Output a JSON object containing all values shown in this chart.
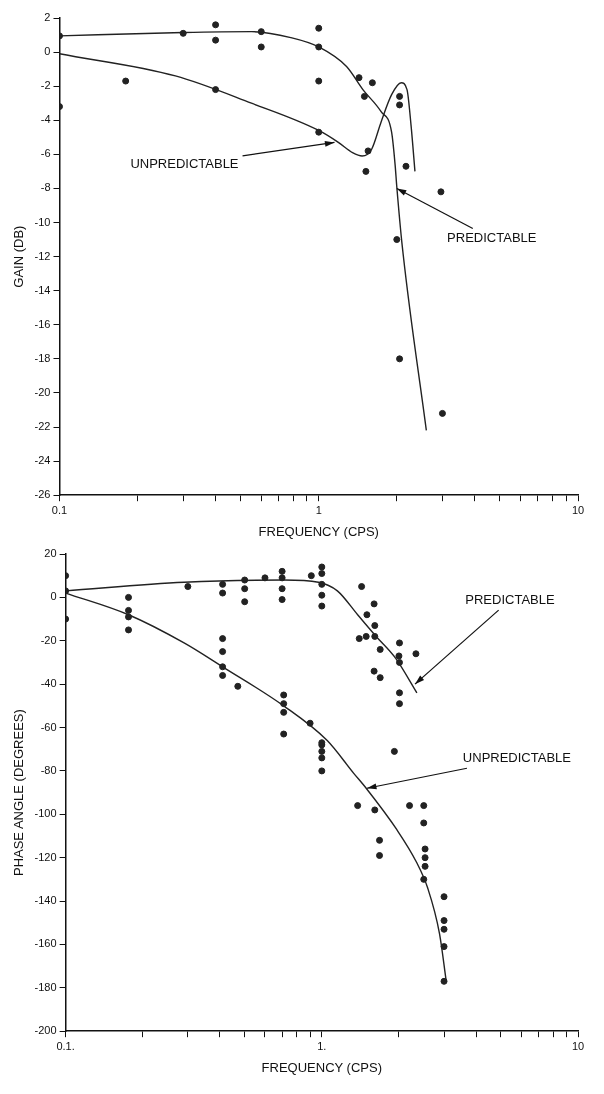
{
  "chart_data": [
    {
      "type": "scatter",
      "xlabel": "FREQUENCY (CPS)",
      "ylabel": "GAIN (DB)",
      "log": "x",
      "xlim": [
        0.1,
        10
      ],
      "xticks": [
        0.1,
        {
          "value": 0.2,
          "label": null
        },
        {
          "value": 0.3,
          "label": null
        },
        {
          "value": 0.4,
          "label": null
        },
        {
          "value": 0.5,
          "label": null
        },
        {
          "value": 0.6,
          "label": null
        },
        {
          "value": 0.7,
          "label": null
        },
        {
          "value": 0.8,
          "label": null
        },
        {
          "value": 0.9,
          "label": null
        },
        1,
        {
          "value": 2,
          "label": null
        },
        {
          "value": 3,
          "label": null
        },
        {
          "value": 4,
          "label": null
        },
        {
          "value": 5,
          "label": null
        },
        {
          "value": 6,
          "label": null
        },
        {
          "value": 7,
          "label": null
        },
        {
          "value": 8,
          "label": null
        },
        {
          "value": 9,
          "label": null
        },
        10
      ],
      "ylim": [
        -26,
        2
      ],
      "yticks": [
        -26,
        -24,
        -22,
        -20,
        -18,
        -16,
        -14,
        -12,
        -10,
        -8,
        -6,
        -4,
        -2,
        0,
        2
      ],
      "line_style": "solid",
      "series": [
        {
          "type": "scatter",
          "marker": "circle",
          "color": "#222222",
          "x": [
            0.1,
            0.1,
            0.18,
            0.3,
            0.4,
            0.4,
            0.4,
            0.6,
            0.6,
            1.0,
            1.0,
            1.0,
            1.0,
            1.43,
            1.61,
            1.5,
            1.55,
            1.52,
            2.05,
            2.05,
            2.17,
            2.96,
            2.0,
            2.05,
            3.0
          ],
          "values": [
            0.95,
            -3.2,
            -1.7,
            1.1,
            1.6,
            0.7,
            -2.2,
            1.2,
            0.3,
            1.4,
            0.3,
            -1.7,
            -4.7,
            -1.5,
            -1.8,
            -2.6,
            -5.8,
            -7.0,
            -2.6,
            -3.1,
            -6.7,
            -8.2,
            -11.0,
            -18.0,
            -21.2
          ]
        },
        {
          "type": "line",
          "color": "#222222",
          "x": [
            0.1,
            0.3,
            0.55,
            0.78,
            1.0,
            1.28,
            1.48,
            1.74,
            1.91,
            1.97,
            2.0,
            2.1,
            2.6
          ],
          "values": [
            0.95,
            1.15,
            1.2,
            0.85,
            0.3,
            -0.85,
            -2.2,
            -3.5,
            -4.7,
            -6.6,
            -7.9,
            -11.4,
            -22.2
          ]
        },
        {
          "type": "line",
          "color": "#222222",
          "x": [
            0.1,
            0.28,
            0.55,
            1.0,
            1.19,
            1.35,
            1.47,
            1.6,
            1.74,
            1.91,
            2.08,
            2.19,
            2.27,
            2.35
          ],
          "values": [
            -0.1,
            -1.4,
            -3.0,
            -4.6,
            -5.3,
            -5.9,
            -6.1,
            -5.7,
            -4.1,
            -2.5,
            -1.8,
            -2.2,
            -4.3,
            -7.0
          ]
        }
      ],
      "annotations": [
        {
          "text": "UNPREDICTABLE",
          "x": 1.15,
          "y": -5.3
        },
        {
          "text": "PREDICTABLE",
          "x": 2.0,
          "y": -8.0
        }
      ]
    },
    {
      "type": "scatter",
      "xlabel": "FREQUENCY (CPS)",
      "ylabel": "PHASE ANGLE (DEGREES)",
      "log": "x",
      "xlim": [
        0.1,
        10
      ],
      "xticks": [
        {
          "value": 0.1,
          "label": "0.1."
        },
        {
          "value": 0.2,
          "label": null
        },
        {
          "value": 0.3,
          "label": null
        },
        {
          "value": 0.4,
          "label": null
        },
        {
          "value": 0.5,
          "label": null
        },
        {
          "value": 0.6,
          "label": null
        },
        {
          "value": 0.7,
          "label": null
        },
        {
          "value": 0.8,
          "label": null
        },
        {
          "value": 0.9,
          "label": null
        },
        {
          "value": 1,
          "label": "1."
        },
        {
          "value": 2,
          "label": null
        },
        {
          "value": 3,
          "label": null
        },
        {
          "value": 4,
          "label": null
        },
        {
          "value": 5,
          "label": null
        },
        {
          "value": 6,
          "label": null
        },
        {
          "value": 7,
          "label": null
        },
        {
          "value": 8,
          "label": null
        },
        {
          "value": 9,
          "label": null
        },
        10
      ],
      "ylim": [
        -200,
        20
      ],
      "yticks": [
        -200,
        -180,
        -160,
        -140,
        -120,
        -100,
        -80,
        -60,
        -40,
        -20,
        0,
        20
      ],
      "line_style": "solid",
      "series": [
        {
          "type": "scatter",
          "marker": "circle",
          "color": "#222222",
          "x": [
            0.1,
            0.1,
            0.1,
            0.176,
            0.176,
            0.176,
            0.176,
            0.3,
            0.41,
            0.41,
            0.41,
            0.41,
            0.41,
            0.41,
            0.47,
            0.5,
            0.5,
            0.5,
            0.6,
            0.7,
            0.7,
            0.7,
            0.7,
            0.71,
            0.71,
            0.71,
            0.71,
            0.91,
            1.0,
            1.0,
            1.0,
            1.0,
            1.0,
            1.0,
            0.9,
            1.0,
            1.0,
            1.0,
            1.0,
            1.43,
            1.6,
            1.5,
            1.4,
            1.49,
            1.61,
            1.61,
            1.69,
            1.6,
            1.69,
            1.92,
            2.01,
            2.0,
            2.01,
            2.01,
            2.01,
            2.33,
            1.38,
            1.61,
            1.68,
            1.68,
            2.2,
            2.5,
            2.5,
            2.53,
            2.53,
            2.53,
            2.5,
            3.0,
            3.0,
            3.0,
            3.0,
            3.0
          ],
          "values": [
            10,
            3,
            -10,
            0,
            -6,
            -9,
            -15,
            5,
            6,
            2,
            -19,
            -25,
            -32,
            -36,
            -41,
            8,
            4,
            -2,
            9,
            12,
            9,
            4,
            -1,
            -45,
            -49,
            -53,
            -63,
            10,
            14,
            11,
            6,
            1,
            -4,
            -68,
            -58,
            -67,
            -71,
            -74,
            -80,
            5,
            -3,
            -8,
            -19,
            -18,
            -13,
            -18,
            -24,
            -34,
            -37,
            -71,
            -21,
            -27,
            -30,
            -44,
            -49,
            -26,
            -96,
            -98,
            -112,
            -119,
            -96,
            -96,
            -104,
            -116,
            -120,
            -124,
            -130,
            -138,
            -149,
            -153,
            -161,
            -177
          ]
        },
        {
          "type": "line",
          "color": "#222222",
          "x": [
            0.1,
            0.29,
            0.71,
            0.97,
            1.15,
            1.38,
            1.63,
            1.94,
            2.35
          ],
          "values": [
            3,
            7,
            8,
            7,
            3,
            -8,
            -18,
            -28,
            -44
          ]
        },
        {
          "type": "line",
          "color": "#222222",
          "x": [
            0.1,
            0.176,
            0.29,
            0.41,
            0.71,
            1.05,
            1.33,
            1.49,
            1.96,
            2.34,
            2.59,
            2.88,
            3.06
          ],
          "values": [
            2,
            -8,
            -21,
            -32,
            -50,
            -66,
            -81,
            -88,
            -107,
            -122,
            -134,
            -155,
            -177
          ]
        }
      ],
      "annotations": [
        {
          "text": "PREDICTABLE",
          "x": 2.31,
          "y": -40
        },
        {
          "text": "UNPREDICTABLE",
          "x": 1.5,
          "y": -88
        }
      ]
    }
  ]
}
